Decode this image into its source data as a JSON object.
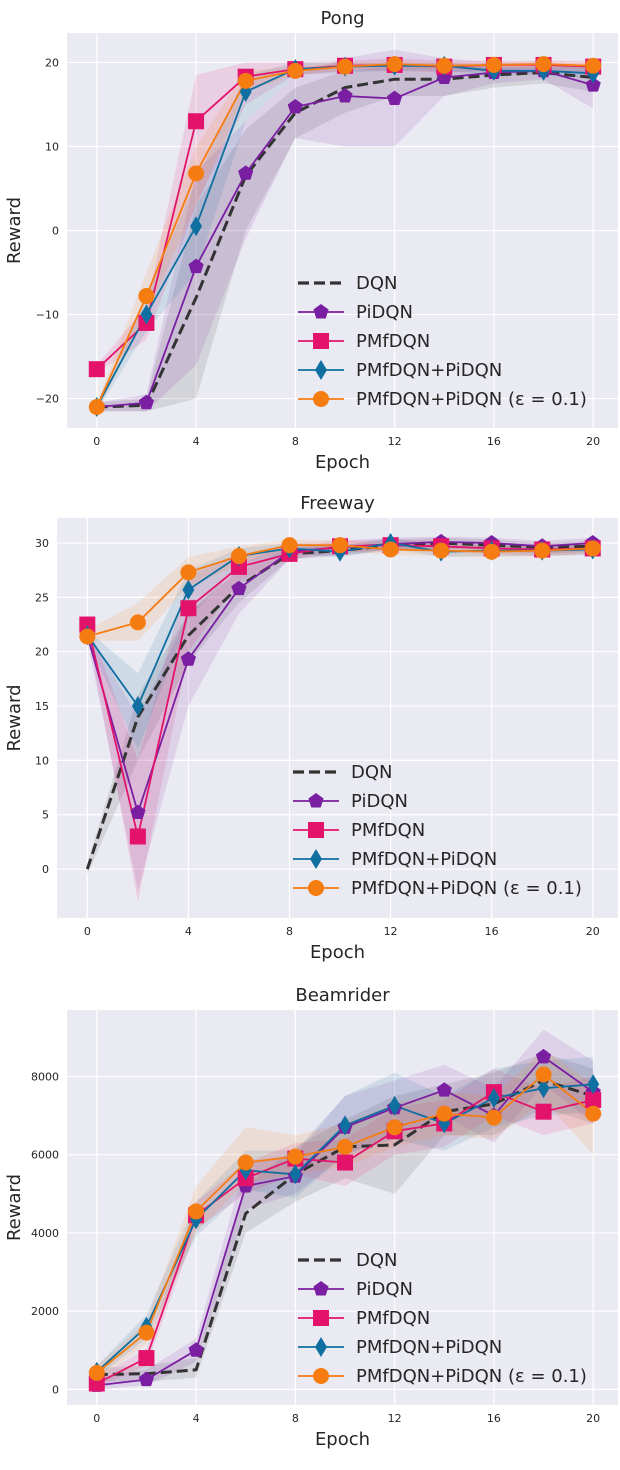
{
  "chart_data": [
    {
      "type": "line",
      "title": "Pong",
      "xlabel": "Epoch",
      "ylabel": "Reward",
      "xlim": [
        -1.2,
        21
      ],
      "ylim": [
        -23.5,
        23.5
      ],
      "xticks": [
        0,
        4,
        8,
        12,
        16,
        20
      ],
      "yticks": [
        -20,
        -10,
        0,
        10,
        20
      ],
      "ytick_labels": [
        "−20",
        "−10",
        "0",
        "10",
        "20"
      ],
      "grid": true,
      "legend_position": "lower-right",
      "x": [
        0,
        2,
        4,
        6,
        8,
        10,
        12,
        14,
        16,
        18,
        20
      ],
      "series": [
        {
          "name": "DQN",
          "color": "#333333",
          "style": "dashed",
          "marker": "none",
          "values": [
            -21,
            -20.8,
            -8,
            6.5,
            14,
            17,
            18,
            18,
            18.5,
            18.8,
            18.2
          ],
          "band": [
            [
              -21.5,
              -20.5
            ],
            [
              -21.5,
              -20
            ],
            [
              -20,
              3
            ],
            [
              0,
              12
            ],
            [
              11,
              17
            ],
            [
              14,
              19
            ],
            [
              16,
              19.5
            ],
            [
              16,
              19.5
            ],
            [
              17,
              19.5
            ],
            [
              17.5,
              19.5
            ],
            [
              16.5,
              19.5
            ]
          ]
        },
        {
          "name": "PiDQN",
          "color": "#7B1FA2",
          "style": "solid",
          "marker": "pentagon",
          "values": [
            -21,
            -20.5,
            -4.3,
            6.8,
            14.7,
            16,
            15.7,
            18.2,
            18.8,
            19,
            17.3
          ],
          "band": [
            [
              -21.5,
              -20.5
            ],
            [
              -21.5,
              -19.5
            ],
            [
              -16,
              7
            ],
            [
              -1,
              13
            ],
            [
              11,
              18.5
            ],
            [
              10,
              20.5
            ],
            [
              10,
              21.5
            ],
            [
              16,
              20.5
            ],
            [
              17.5,
              20
            ],
            [
              18,
              20
            ],
            [
              14.5,
              19.5
            ]
          ]
        },
        {
          "name": "PMfDQN",
          "color": "#E3136B",
          "style": "solid",
          "marker": "square",
          "values": [
            -16.5,
            -11,
            13,
            18.3,
            19.2,
            19.6,
            19.7,
            19.5,
            19.7,
            19.7,
            19.5
          ],
          "band": [
            [
              -17,
              -16
            ],
            [
              -13,
              -9
            ],
            [
              3,
              18.5
            ],
            [
              15,
              20
            ],
            [
              18.5,
              20
            ],
            [
              19,
              20.2
            ],
            [
              19,
              20.5
            ],
            [
              18.8,
              20.2
            ],
            [
              19,
              20.2
            ],
            [
              19,
              20.2
            ],
            [
              18.8,
              20.2
            ]
          ]
        },
        {
          "name": "PMfDQN+PiDQN",
          "color": "#0E6FA0",
          "style": "solid",
          "marker": "diamond",
          "values": [
            -21,
            -10,
            0.5,
            16.5,
            19.2,
            19.5,
            19.6,
            19.6,
            19,
            19,
            18.7
          ],
          "band": [
            [
              -21.5,
              -20.5
            ],
            [
              -12,
              -8
            ],
            [
              -5,
              6
            ],
            [
              13,
              18.5
            ],
            [
              18.5,
              20
            ],
            [
              18.8,
              20
            ],
            [
              19,
              20
            ],
            [
              19,
              20
            ],
            [
              18.5,
              19.5
            ],
            [
              18.5,
              19.5
            ],
            [
              18,
              19.5
            ]
          ]
        },
        {
          "name": "PMfDQN+PiDQN (ε = 0.1)",
          "color": "#F57C10",
          "style": "solid",
          "marker": "circle",
          "values": [
            -21,
            -7.8,
            6.8,
            17.8,
            19,
            19.5,
            19.8,
            19.6,
            19.7,
            19.8,
            19.6
          ],
          "band": [
            [
              -21.5,
              -20.5
            ],
            [
              -10,
              -5
            ],
            [
              3,
              10
            ],
            [
              16.5,
              19
            ],
            [
              18.5,
              19.5
            ],
            [
              19,
              20
            ],
            [
              19.3,
              20.2
            ],
            [
              19.2,
              20
            ],
            [
              19.3,
              20
            ],
            [
              19.3,
              20.2
            ],
            [
              19.2,
              20
            ]
          ]
        }
      ]
    },
    {
      "type": "line",
      "title": "Freeway",
      "xlabel": "Epoch",
      "ylabel": "Reward",
      "xlim": [
        -1.2,
        21
      ],
      "ylim": [
        -4.5,
        32.3
      ],
      "xticks": [
        0,
        4,
        8,
        12,
        16,
        20
      ],
      "yticks": [
        0,
        5,
        10,
        15,
        20,
        25,
        30
      ],
      "ytick_labels": [
        "0",
        "5",
        "10",
        "15",
        "20",
        "25",
        "30"
      ],
      "grid": true,
      "legend_position": "lower-right",
      "x": [
        0,
        2,
        4,
        6,
        8,
        10,
        12,
        14,
        16,
        18,
        20
      ],
      "series": [
        {
          "name": "DQN",
          "color": "#333333",
          "style": "dashed",
          "marker": "none",
          "values": [
            0,
            14,
            21.5,
            26,
            29,
            29.3,
            29.8,
            30,
            29.8,
            29.6,
            29.7
          ],
          "band": [
            [
              -0.5,
              0.5
            ],
            [
              10,
              16
            ],
            [
              19,
              23.5
            ],
            [
              24.5,
              27.5
            ],
            [
              28.5,
              29.5
            ],
            [
              28.8,
              29.8
            ],
            [
              29.3,
              30.3
            ],
            [
              29.5,
              30.5
            ],
            [
              29.3,
              30.3
            ],
            [
              29,
              30
            ],
            [
              29.2,
              30.2
            ]
          ]
        },
        {
          "name": "PiDQN",
          "color": "#7B1FA2",
          "style": "solid",
          "marker": "pentagon",
          "values": [
            21.5,
            5.2,
            19.3,
            25.8,
            29.2,
            29.6,
            29.9,
            30.1,
            30,
            29.7,
            30
          ],
          "band": [
            [
              21,
              22
            ],
            [
              -2,
              14
            ],
            [
              15,
              23.5
            ],
            [
              23.5,
              28
            ],
            [
              28.5,
              30
            ],
            [
              29,
              30.2
            ],
            [
              29.4,
              30.5
            ],
            [
              29.5,
              30.6
            ],
            [
              29.5,
              30.5
            ],
            [
              29.2,
              30.2
            ],
            [
              29.5,
              30.5
            ]
          ]
        },
        {
          "name": "PMfDQN",
          "color": "#E3136B",
          "style": "solid",
          "marker": "square",
          "values": [
            22.5,
            3,
            24,
            27.8,
            29,
            29.7,
            29.8,
            29.7,
            29.5,
            29.4,
            29.5
          ],
          "band": [
            [
              22,
              23
            ],
            [
              -3,
              10
            ],
            [
              20,
              27
            ],
            [
              26.5,
              29
            ],
            [
              28.5,
              29.5
            ],
            [
              29.2,
              30.2
            ],
            [
              29.3,
              30.3
            ],
            [
              29.2,
              30.2
            ],
            [
              29,
              30
            ],
            [
              28.8,
              29.8
            ],
            [
              29,
              30
            ]
          ]
        },
        {
          "name": "PMfDQN+PiDQN",
          "color": "#0E6FA0",
          "style": "solid",
          "marker": "diamond",
          "values": [
            21.5,
            15,
            25.7,
            28.8,
            29.5,
            29.2,
            30,
            29.2,
            29.3,
            29.3,
            29.4
          ],
          "band": [
            [
              21,
              22
            ],
            [
              11,
              18
            ],
            [
              23,
              27.5
            ],
            [
              28,
              29.5
            ],
            [
              29,
              30
            ],
            [
              28.7,
              29.7
            ],
            [
              29.5,
              30.5
            ],
            [
              28.7,
              29.7
            ],
            [
              28.8,
              29.8
            ],
            [
              28.8,
              29.8
            ],
            [
              28.9,
              29.9
            ]
          ]
        },
        {
          "name": "PMfDQN+PiDQN (ε = 0.1)",
          "color": "#F57C10",
          "style": "solid",
          "marker": "circle",
          "values": [
            21.4,
            22.7,
            27.3,
            28.8,
            29.8,
            29.8,
            29.4,
            29.3,
            29.2,
            29.3,
            29.5
          ],
          "band": [
            [
              21,
              22
            ],
            [
              21,
              24.5
            ],
            [
              26,
              28.7
            ],
            [
              28,
              29.7
            ],
            [
              29.3,
              30.3
            ],
            [
              29.3,
              30.3
            ],
            [
              28.9,
              29.9
            ],
            [
              28.8,
              29.8
            ],
            [
              28.7,
              29.7
            ],
            [
              28.8,
              29.8
            ],
            [
              29,
              30
            ]
          ]
        }
      ]
    },
    {
      "type": "line",
      "title": "Beamrider",
      "xlabel": "Epoch",
      "ylabel": "Reward",
      "xlim": [
        -1.2,
        21
      ],
      "ylim": [
        -400,
        9700
      ],
      "xticks": [
        0,
        4,
        8,
        12,
        16,
        20
      ],
      "yticks": [
        0,
        2000,
        4000,
        6000,
        8000
      ],
      "ytick_labels": [
        "0",
        "2000",
        "4000",
        "6000",
        "8000"
      ],
      "grid": true,
      "legend_position": "lower-right",
      "x": [
        0,
        2,
        4,
        6,
        8,
        10,
        12,
        14,
        16,
        18,
        20
      ],
      "series": [
        {
          "name": "DQN",
          "color": "#333333",
          "style": "dashed",
          "marker": "none",
          "values": [
            380,
            400,
            500,
            4500,
            5500,
            6200,
            6250,
            7100,
            7300,
            7900,
            7500
          ],
          "band": [
            [
              200,
              550
            ],
            [
              200,
              600
            ],
            [
              300,
              800
            ],
            [
              4000,
              5200
            ],
            [
              4800,
              6200
            ],
            [
              5400,
              6900
            ],
            [
              5000,
              7500
            ],
            [
              6500,
              7800
            ],
            [
              6500,
              8100
            ],
            [
              7200,
              8600
            ],
            [
              6800,
              8200
            ]
          ]
        },
        {
          "name": "PiDQN",
          "color": "#7B1FA2",
          "style": "solid",
          "marker": "pentagon",
          "values": [
            100,
            250,
            1000,
            5200,
            5450,
            6700,
            7200,
            7650,
            7000,
            8500,
            7600
          ],
          "band": [
            [
              0,
              300
            ],
            [
              100,
              500
            ],
            [
              700,
              1300
            ],
            [
              4600,
              5800
            ],
            [
              5000,
              6000
            ],
            [
              6000,
              7500
            ],
            [
              6500,
              7900
            ],
            [
              7000,
              8300
            ],
            [
              6300,
              7700
            ],
            [
              7800,
              9200
            ],
            [
              6800,
              8400
            ]
          ]
        },
        {
          "name": "PMfDQN",
          "color": "#E3136B",
          "style": "solid",
          "marker": "square",
          "values": [
            150,
            800,
            4450,
            5400,
            5900,
            5800,
            6600,
            6800,
            7600,
            7100,
            7400
          ],
          "band": [
            [
              50,
              300
            ],
            [
              600,
              1050
            ],
            [
              4100,
              4800
            ],
            [
              5000,
              5800
            ],
            [
              5500,
              6300
            ],
            [
              5200,
              6400
            ],
            [
              6000,
              7200
            ],
            [
              6200,
              7400
            ],
            [
              7000,
              8200
            ],
            [
              6500,
              7700
            ],
            [
              6800,
              8000
            ]
          ]
        },
        {
          "name": "PMfDQN+PiDQN",
          "color": "#0E6FA0",
          "style": "solid",
          "marker": "diamond",
          "values": [
            450,
            1600,
            4350,
            5600,
            5500,
            6750,
            7250,
            6800,
            7450,
            7700,
            7800
          ],
          "band": [
            [
              300,
              600
            ],
            [
              1300,
              1900
            ],
            [
              3900,
              4800
            ],
            [
              5100,
              6100
            ],
            [
              4900,
              6100
            ],
            [
              6000,
              7500
            ],
            [
              6400,
              8100
            ],
            [
              6100,
              7500
            ],
            [
              6700,
              8200
            ],
            [
              7000,
              8400
            ],
            [
              7100,
              8500
            ]
          ]
        },
        {
          "name": "PMfDQN+PiDQN (ε = 0.1)",
          "color": "#F57C10",
          "style": "solid",
          "marker": "circle",
          "values": [
            420,
            1450,
            4550,
            5800,
            5950,
            6200,
            6700,
            7050,
            6950,
            8050,
            7050
          ],
          "band": [
            [
              250,
              600
            ],
            [
              1150,
              1750
            ],
            [
              4000,
              5200
            ],
            [
              5300,
              6700
            ],
            [
              5500,
              6500
            ],
            [
              5700,
              6800
            ],
            [
              6200,
              7300
            ],
            [
              6500,
              7600
            ],
            [
              6400,
              7500
            ],
            [
              7400,
              8700
            ],
            [
              6000,
              7800
            ]
          ]
        }
      ]
    }
  ]
}
